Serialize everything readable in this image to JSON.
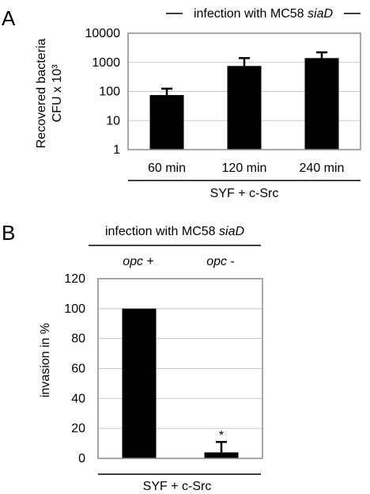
{
  "chart_data": [
    {
      "panel": "A",
      "type": "bar",
      "yscale": "log",
      "ylim": [
        1,
        10000
      ],
      "yticks": [
        "1",
        "10",
        "100",
        "1000",
        "10000"
      ],
      "ytick_values": [
        1,
        10,
        100,
        1000,
        10000
      ],
      "ylabel_line1": "Recovered bacteria",
      "ylabel_line2": "CFU x 10³",
      "grid": true,
      "top_label_pre": "infection with MC58 ",
      "top_label_italic": "siaD",
      "categories": [
        "60 min",
        "120 min",
        "240 min"
      ],
      "values": [
        75,
        750,
        1400
      ],
      "errors_upper": [
        125,
        1400,
        2200
      ],
      "group_label": "SYF + c-Src",
      "colors": {
        "bar": "#000000",
        "frame": "#8c8c8c",
        "grid": "#c8c8c8"
      }
    },
    {
      "panel": "B",
      "type": "bar",
      "yscale": "linear",
      "ylim": [
        0,
        120
      ],
      "yticks": [
        "0",
        "20",
        "40",
        "60",
        "80",
        "100",
        "120"
      ],
      "ytick_values": [
        0,
        20,
        40,
        60,
        80,
        100,
        120
      ],
      "ylabel": "invasion in %",
      "grid": true,
      "top_label_pre": "infection with MC58 ",
      "top_label_italic": "siaD",
      "categories": [
        {
          "italic": "opc",
          "suffix": " +"
        },
        {
          "italic": "opc",
          "suffix": " -"
        }
      ],
      "values": [
        100,
        4
      ],
      "errors_upper": [
        100,
        11
      ],
      "annotations": [
        {
          "bar": 1,
          "text": "*"
        }
      ],
      "group_label": "SYF + c-Src",
      "colors": {
        "bar": "#000000",
        "frame": "#8c8c8c",
        "grid": "#c8c8c8"
      }
    }
  ]
}
